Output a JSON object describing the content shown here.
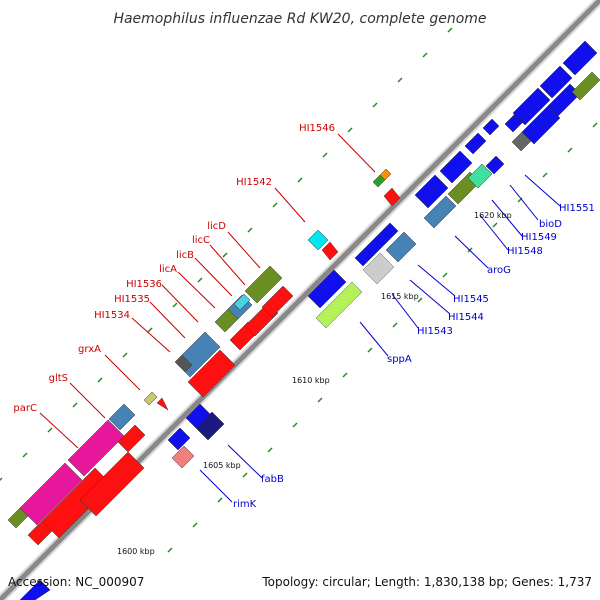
{
  "title": "Haemophilus influenzae Rd KW20, complete genome",
  "footer": {
    "accession": "Accession: NC_000907",
    "topology": "Topology: circular; Length: 1,830,138 bp; Genes: 1,737"
  },
  "colors": {
    "top_labels": "#cc0000",
    "bottom_labels": "#0000cc",
    "backbone": "#888888",
    "ticks": "#228822"
  },
  "scale_labels": [
    "1600 kbp",
    "1605 kbp",
    "1610 kbp",
    "1615 kbp",
    "1620 kbp"
  ],
  "top_genes": [
    "HI1546",
    "HI1542",
    "licD",
    "licC",
    "licB",
    "licA",
    "HI1536",
    "HI1535",
    "HI1534",
    "grxA",
    "gltS",
    "parC"
  ],
  "bottom_genes": [
    "HI1551",
    "bioD",
    "HI1549",
    "HI1548",
    "aroG",
    "HI1545",
    "HI1544",
    "HI1543",
    "sppA",
    "fabB",
    "rimK"
  ]
}
